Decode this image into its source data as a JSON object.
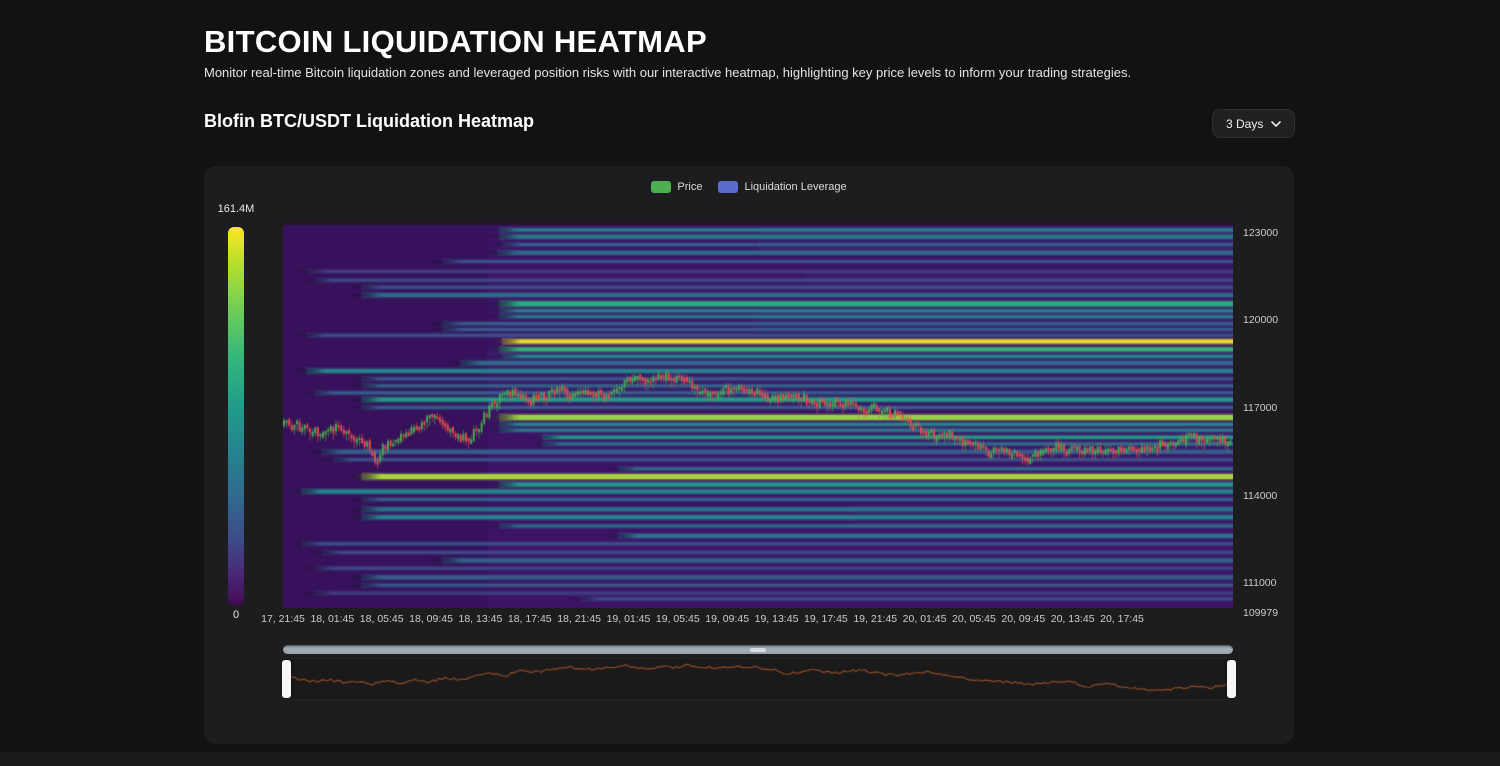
{
  "page": {
    "title": "BITCOIN LIQUIDATION HEATMAP",
    "subtitle": "Monitor real-time Bitcoin liquidation zones and leveraged position risks with our interactive heatmap, highlighting key price levels to inform your trading strategies."
  },
  "section": {
    "title": "Blofin BTC/USDT Liquidation Heatmap",
    "range_label": "3 Days"
  },
  "chart_data": {
    "type": "heatmap",
    "title": "Blofin BTC/USDT Liquidation Heatmap",
    "legend": [
      {
        "label": "Price",
        "color": "#4caf50"
      },
      {
        "label": "Liquidation Leverage",
        "color": "#5b6ccc"
      }
    ],
    "colorbar": {
      "max_label": "161.4M",
      "min_label": "0",
      "colormap": "viridis"
    },
    "x_ticks": [
      "17, 21:45",
      "18, 01:45",
      "18, 05:45",
      "18, 09:45",
      "18, 13:45",
      "18, 17:45",
      "18, 21:45",
      "19, 01:45",
      "19, 05:45",
      "19, 09:45",
      "19, 13:45",
      "19, 17:45",
      "19, 21:45",
      "20, 01:45",
      "20, 05:45",
      "20, 09:45",
      "20, 13:45",
      "20, 17:45"
    ],
    "price_axis": {
      "min": 109979,
      "max": 123203,
      "ticks": [
        123000,
        120000,
        117000,
        114000,
        111000,
        109979
      ]
    },
    "heatmap_style": {
      "base": "#3d1365",
      "left_shade_until": 0.215,
      "top_edge": "rgba(18,24,12,0.6)"
    },
    "washes": [
      [
        122900,
        122100,
        0.5,
        0.16
      ],
      [
        121600,
        120800,
        0.55,
        0.13
      ],
      [
        120100,
        119400,
        0.5,
        0.16
      ],
      [
        118900,
        118300,
        0.215,
        0.13
      ],
      [
        113500,
        112800,
        0.6,
        0.1
      ]
    ],
    "liquidation_bands": [
      [
        122930,
        0.215,
        0.45,
        3
      ],
      [
        122700,
        0.215,
        0.4,
        4
      ],
      [
        122430,
        0.218,
        0.3,
        3
      ],
      [
        122150,
        0.213,
        0.35,
        4
      ],
      [
        121850,
        0.155,
        0.25,
        3
      ],
      [
        121510,
        0.012,
        0.18,
        3
      ],
      [
        121210,
        0.02,
        0.22,
        3
      ],
      [
        120970,
        0.07,
        0.25,
        3
      ],
      [
        120700,
        0.07,
        0.35,
        4
      ],
      [
        120400,
        0.215,
        0.62,
        5
      ],
      [
        120160,
        0.215,
        0.45,
        3
      ],
      [
        119960,
        0.215,
        0.4,
        3
      ],
      [
        119720,
        0.155,
        0.3,
        3
      ],
      [
        119520,
        0.155,
        0.28,
        3
      ],
      [
        119320,
        0.012,
        0.25,
        3
      ],
      [
        119110,
        0.218,
        0.97,
        4
      ],
      [
        118840,
        0.215,
        0.65,
        4
      ],
      [
        118600,
        0.218,
        0.45,
        3
      ],
      [
        118370,
        0.174,
        0.35,
        4
      ],
      [
        118100,
        0.012,
        0.45,
        4
      ],
      [
        117830,
        0.07,
        0.28,
        3
      ],
      [
        117590,
        0.07,
        0.32,
        3
      ],
      [
        117350,
        0.02,
        0.3,
        3
      ],
      [
        117120,
        0.07,
        0.55,
        4
      ],
      [
        116850,
        0.07,
        0.3,
        3
      ],
      [
        116510,
        0.215,
        0.85,
        5
      ],
      [
        116270,
        0.215,
        0.45,
        3
      ],
      [
        116070,
        0.215,
        0.4,
        3
      ],
      [
        115830,
        0.26,
        0.55,
        3
      ],
      [
        115600,
        0.26,
        0.35,
        3
      ],
      [
        115330,
        0.028,
        0.3,
        4
      ],
      [
        115060,
        0.04,
        0.25,
        3
      ],
      [
        114750,
        0.34,
        0.35,
        3
      ],
      [
        114480,
        0.07,
        0.88,
        5
      ],
      [
        114210,
        0.215,
        0.55,
        4
      ],
      [
        113970,
        0.007,
        0.45,
        4
      ],
      [
        113700,
        0.07,
        0.3,
        3
      ],
      [
        113360,
        0.07,
        0.38,
        4
      ],
      [
        113090,
        0.07,
        0.45,
        4
      ],
      [
        112790,
        0.215,
        0.35,
        3
      ],
      [
        112450,
        0.34,
        0.38,
        4
      ],
      [
        112180,
        0.007,
        0.25,
        3
      ],
      [
        111880,
        0.028,
        0.22,
        3
      ],
      [
        111610,
        0.155,
        0.32,
        4
      ],
      [
        111340,
        0.02,
        0.2,
        3
      ],
      [
        111030,
        0.07,
        0.3,
        4
      ],
      [
        110760,
        0.07,
        0.28,
        3
      ],
      [
        110490,
        0.02,
        0.18,
        3
      ],
      [
        110290,
        0.3,
        0.22,
        3
      ]
    ],
    "price_candles": {
      "color_up": "#4caf50",
      "color_down": "#e9504e",
      "points": [
        [
          0.0,
          116340
        ],
        [
          0.018,
          116170
        ],
        [
          0.039,
          115970
        ],
        [
          0.056,
          116170
        ],
        [
          0.073,
          115770
        ],
        [
          0.089,
          115560
        ],
        [
          0.097,
          114890
        ],
        [
          0.104,
          115500
        ],
        [
          0.118,
          115770
        ],
        [
          0.136,
          116100
        ],
        [
          0.155,
          116510
        ],
        [
          0.167,
          116240
        ],
        [
          0.181,
          115830
        ],
        [
          0.195,
          115770
        ],
        [
          0.207,
          116240
        ],
        [
          0.215,
          116780
        ],
        [
          0.228,
          117190
        ],
        [
          0.244,
          117320
        ],
        [
          0.26,
          117120
        ],
        [
          0.276,
          117250
        ],
        [
          0.292,
          117460
        ],
        [
          0.307,
          117250
        ],
        [
          0.323,
          117390
        ],
        [
          0.339,
          117250
        ],
        [
          0.355,
          117660
        ],
        [
          0.371,
          117860
        ],
        [
          0.384,
          117720
        ],
        [
          0.397,
          117990
        ],
        [
          0.409,
          117860
        ],
        [
          0.423,
          117760
        ],
        [
          0.439,
          117390
        ],
        [
          0.452,
          117190
        ],
        [
          0.465,
          117420
        ],
        [
          0.479,
          117630
        ],
        [
          0.492,
          117460
        ],
        [
          0.504,
          117250
        ],
        [
          0.518,
          117120
        ],
        [
          0.532,
          117320
        ],
        [
          0.544,
          117190
        ],
        [
          0.557,
          117020
        ],
        [
          0.571,
          116920
        ],
        [
          0.584,
          117050
        ],
        [
          0.597,
          116920
        ],
        [
          0.609,
          116780
        ],
        [
          0.623,
          116850
        ],
        [
          0.637,
          116680
        ],
        [
          0.649,
          116510
        ],
        [
          0.662,
          116240
        ],
        [
          0.676,
          116000
        ],
        [
          0.689,
          115830
        ],
        [
          0.702,
          115900
        ],
        [
          0.715,
          115660
        ],
        [
          0.728,
          115490
        ],
        [
          0.742,
          115320
        ],
        [
          0.755,
          115420
        ],
        [
          0.767,
          115220
        ],
        [
          0.781,
          115020
        ],
        [
          0.797,
          115320
        ],
        [
          0.813,
          115490
        ],
        [
          0.828,
          115420
        ],
        [
          0.844,
          115320
        ],
        [
          0.86,
          115420
        ],
        [
          0.876,
          115320
        ],
        [
          0.892,
          115490
        ],
        [
          0.907,
          115420
        ],
        [
          0.923,
          115560
        ],
        [
          0.939,
          115690
        ],
        [
          0.955,
          115830
        ],
        [
          0.971,
          115690
        ],
        [
          0.986,
          115760
        ],
        [
          1.0,
          115660
        ]
      ]
    },
    "navigator": {
      "line_color": "#8f4a26",
      "points": [
        [
          0.0,
          0.4
        ],
        [
          0.018,
          0.525
        ],
        [
          0.034,
          0.6
        ],
        [
          0.049,
          0.55
        ],
        [
          0.065,
          0.65
        ],
        [
          0.081,
          0.6
        ],
        [
          0.091,
          0.725
        ],
        [
          0.107,
          0.575
        ],
        [
          0.123,
          0.65
        ],
        [
          0.138,
          0.55
        ],
        [
          0.154,
          0.625
        ],
        [
          0.17,
          0.475
        ],
        [
          0.186,
          0.55
        ],
        [
          0.201,
          0.425
        ],
        [
          0.217,
          0.3
        ],
        [
          0.233,
          0.4
        ],
        [
          0.248,
          0.25
        ],
        [
          0.262,
          0.275
        ],
        [
          0.283,
          0.2
        ],
        [
          0.301,
          0.1
        ],
        [
          0.317,
          0.2
        ],
        [
          0.332,
          0.15
        ],
        [
          0.348,
          0.1
        ],
        [
          0.361,
          0.05
        ],
        [
          0.38,
          0.175
        ],
        [
          0.395,
          0.075
        ],
        [
          0.411,
          0.125
        ],
        [
          0.425,
          0.03
        ],
        [
          0.443,
          0.1
        ],
        [
          0.458,
          0.15
        ],
        [
          0.479,
          0.075
        ],
        [
          0.5,
          0.125
        ],
        [
          0.516,
          0.2
        ],
        [
          0.532,
          0.35
        ],
        [
          0.553,
          0.175
        ],
        [
          0.568,
          0.275
        ],
        [
          0.584,
          0.3
        ],
        [
          0.6,
          0.225
        ],
        [
          0.615,
          0.25
        ],
        [
          0.631,
          0.35
        ],
        [
          0.647,
          0.4
        ],
        [
          0.663,
          0.3
        ],
        [
          0.678,
          0.275
        ],
        [
          0.699,
          0.425
        ],
        [
          0.715,
          0.5
        ],
        [
          0.731,
          0.575
        ],
        [
          0.752,
          0.6
        ],
        [
          0.762,
          0.625
        ],
        [
          0.778,
          0.675
        ],
        [
          0.794,
          0.7
        ],
        [
          0.809,
          0.625
        ],
        [
          0.825,
          0.575
        ],
        [
          0.846,
          0.8
        ],
        [
          0.867,
          0.675
        ],
        [
          0.883,
          0.775
        ],
        [
          0.899,
          0.85
        ],
        [
          0.914,
          0.875
        ],
        [
          0.925,
          0.925
        ],
        [
          0.941,
          0.825
        ],
        [
          0.956,
          0.775
        ],
        [
          0.972,
          0.825
        ],
        [
          0.988,
          0.725
        ],
        [
          1.0,
          0.575
        ]
      ]
    }
  }
}
